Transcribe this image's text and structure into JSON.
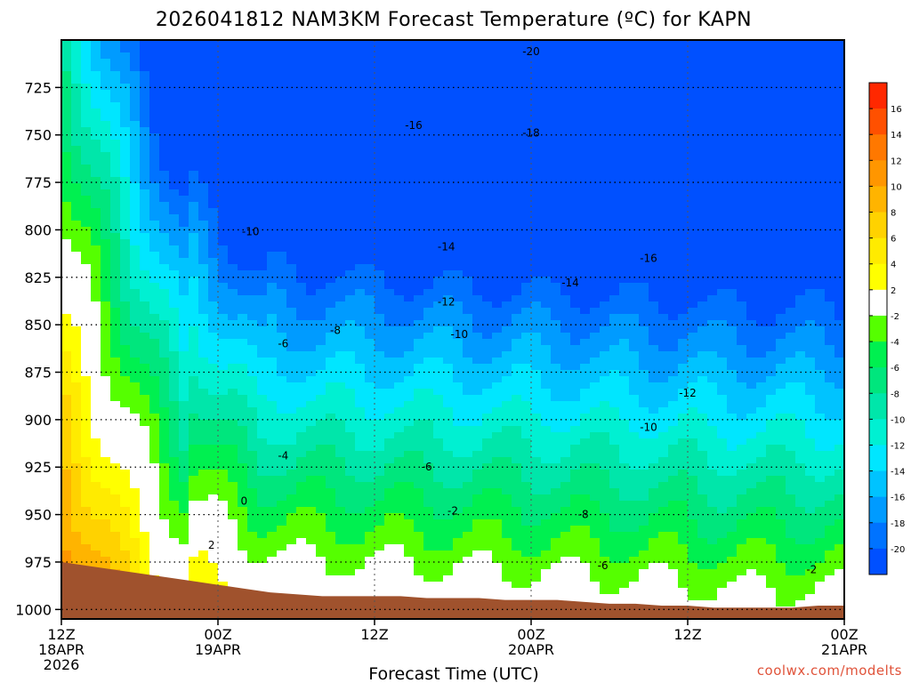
{
  "chart_data": {
    "type": "heatmap",
    "title": "2026041812 NAM3KM Forecast Temperature (ºC) for KAPN",
    "xlabel": "Forecast Time (UTC)",
    "ylabel": "",
    "y_axis": {
      "ylim": [
        1005,
        700
      ],
      "ticks": [
        725,
        750,
        775,
        800,
        825,
        850,
        875,
        900,
        925,
        950,
        975,
        1000
      ]
    },
    "x_axis": {
      "xlim": [
        0,
        60
      ],
      "ticks": [
        {
          "x": 0,
          "lines": [
            "12Z",
            "18APR",
            "2026"
          ]
        },
        {
          "x": 12,
          "lines": [
            "00Z",
            "19APR"
          ]
        },
        {
          "x": 24,
          "lines": [
            "12Z"
          ]
        },
        {
          "x": 36,
          "lines": [
            "00Z",
            "20APR"
          ]
        },
        {
          "x": 48,
          "lines": [
            "12Z"
          ]
        },
        {
          "x": 60,
          "lines": [
            "00Z",
            "21APR"
          ]
        }
      ]
    },
    "colorbar": {
      "levels": [
        16,
        14,
        12,
        10,
        8,
        6,
        4,
        2,
        -2,
        -4,
        -6,
        -8,
        -10,
        -12,
        -14,
        -16,
        -18,
        -20
      ],
      "colors": [
        "#ff2800",
        "#ff5000",
        "#ff7800",
        "#ff9600",
        "#ffb400",
        "#ffd200",
        "#ffeb00",
        "#ffff00",
        "#ffffff",
        "#55ff00",
        "#00f050",
        "#00e67d",
        "#00e6aa",
        "#00f0d2",
        "#00e6ff",
        "#00c3ff",
        "#009bff",
        "#0073ff",
        "#0050ff"
      ]
    },
    "surface_pressure": [
      975,
      977,
      979,
      981,
      983,
      985,
      987,
      989,
      991,
      992,
      993,
      993,
      993,
      993,
      994,
      994,
      994,
      995,
      995,
      995,
      996,
      997,
      997,
      998,
      998,
      999,
      999,
      999,
      999,
      998,
      998
    ],
    "contour_labels": [
      {
        "text": "-20",
        "x": 36.0,
        "p": 706
      },
      {
        "text": "-18",
        "x": 36.0,
        "p": 749
      },
      {
        "text": "-16",
        "x": 27.0,
        "p": 745
      },
      {
        "text": "-16",
        "x": 45.0,
        "p": 815
      },
      {
        "text": "-14",
        "x": 29.5,
        "p": 809
      },
      {
        "text": "-14",
        "x": 39.0,
        "p": 828
      },
      {
        "text": "-12",
        "x": 29.5,
        "p": 838
      },
      {
        "text": "-12",
        "x": 48.0,
        "p": 886
      },
      {
        "text": "-10",
        "x": 14.5,
        "p": 801
      },
      {
        "text": "-10",
        "x": 30.5,
        "p": 855
      },
      {
        "text": "-10",
        "x": 45.0,
        "p": 904
      },
      {
        "text": "-8",
        "x": 21.0,
        "p": 853
      },
      {
        "text": "-8",
        "x": 40.0,
        "p": 950
      },
      {
        "text": "-6",
        "x": 17.0,
        "p": 860
      },
      {
        "text": "-6",
        "x": 41.5,
        "p": 977
      },
      {
        "text": "-6",
        "x": 28.0,
        "p": 925
      },
      {
        "text": "-4",
        "x": 17.0,
        "p": 919
      },
      {
        "text": "-2",
        "x": 30.0,
        "p": 948
      },
      {
        "text": "-2",
        "x": 57.5,
        "p": 979
      },
      {
        "text": "0",
        "x": 14.0,
        "p": 943
      },
      {
        "text": "2",
        "x": 11.5,
        "p": 966
      }
    ]
  },
  "credit": "coolwx.com/modelts"
}
